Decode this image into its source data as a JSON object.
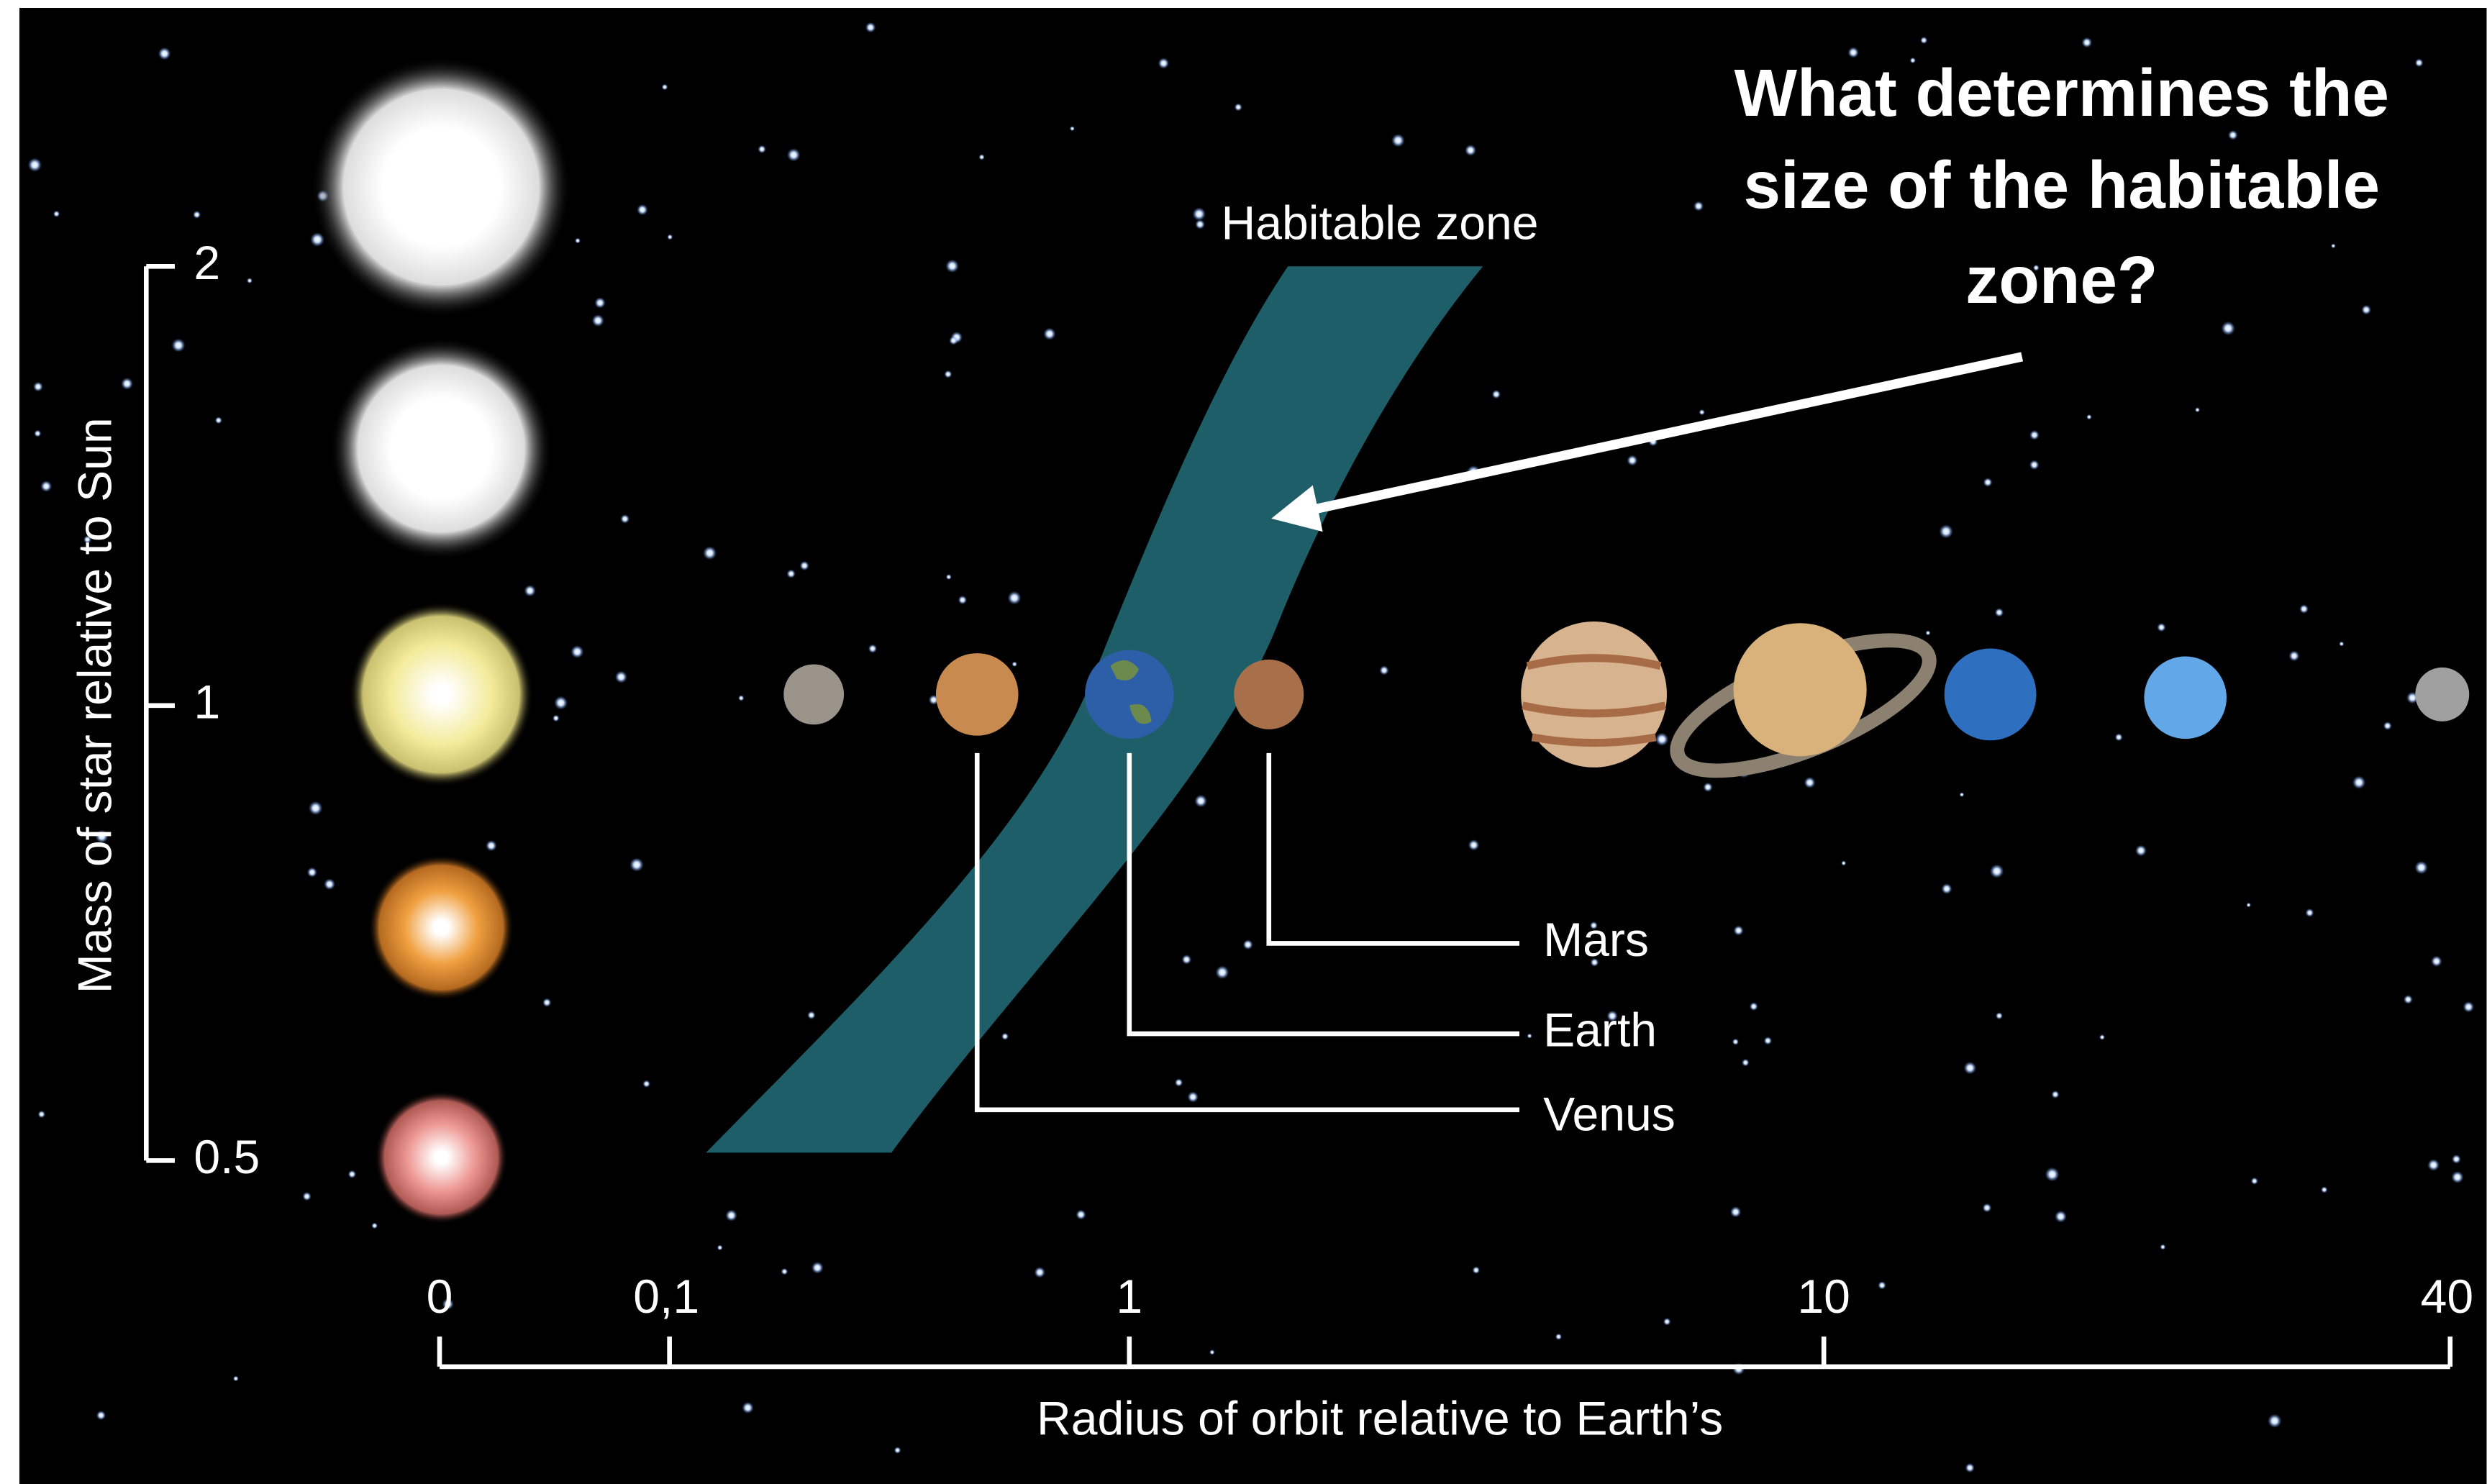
{
  "question": [
    "What determines the",
    "size of the habitable",
    "zone?"
  ],
  "zone_label": "Habitable zone",
  "y_axis": {
    "label": "Mass of star relative to Sun",
    "ticks": [
      "2",
      "1",
      "0.5"
    ]
  },
  "x_axis": {
    "label": "Radius of orbit relative to Earth’s",
    "ticks": [
      "0",
      "0,1",
      "1",
      "10",
      "40"
    ]
  },
  "planet_labels": [
    "Mars",
    "Earth",
    "Venus"
  ]
}
